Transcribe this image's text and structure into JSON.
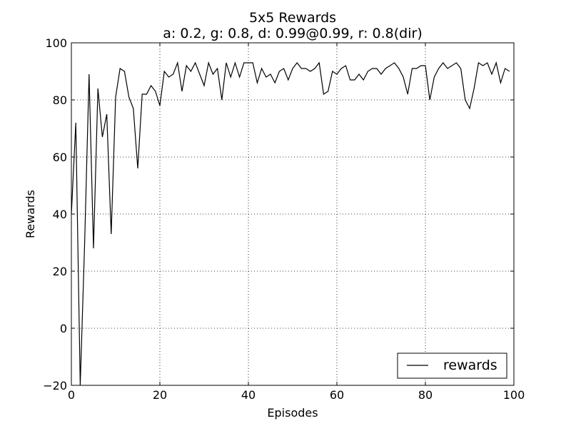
{
  "chart_data": {
    "type": "line",
    "title": "5x5 Rewards",
    "subtitle": "a: 0.2, g: 0.8, d: 0.99@0.99, r: 0.8(dir)",
    "xlabel": "Episodes",
    "ylabel": "Rewards",
    "xlim": [
      0,
      100
    ],
    "ylim": [
      -20,
      100
    ],
    "xticks": [
      "0",
      "20",
      "40",
      "60",
      "80",
      "100"
    ],
    "yticks": [
      "−20",
      "0",
      "20",
      "40",
      "60",
      "80",
      "100"
    ],
    "xtick_values": [
      0,
      20,
      40,
      60,
      80,
      100
    ],
    "ytick_values": [
      -20,
      0,
      20,
      40,
      60,
      80,
      100
    ],
    "grid": true,
    "legend_position": "lower-right",
    "series": [
      {
        "name": "rewards",
        "color": "#000000",
        "x": [
          0,
          1,
          2,
          3,
          4,
          5,
          6,
          7,
          8,
          9,
          10,
          11,
          12,
          13,
          14,
          15,
          16,
          17,
          18,
          19,
          20,
          21,
          22,
          23,
          24,
          25,
          26,
          27,
          28,
          29,
          30,
          31,
          32,
          33,
          34,
          35,
          36,
          37,
          38,
          39,
          40,
          41,
          42,
          43,
          44,
          45,
          46,
          47,
          48,
          49,
          50,
          51,
          52,
          53,
          54,
          55,
          56,
          57,
          58,
          59,
          60,
          61,
          62,
          63,
          64,
          65,
          66,
          67,
          68,
          69,
          70,
          71,
          72,
          73,
          74,
          75,
          76,
          77,
          78,
          79,
          80,
          81,
          82,
          83,
          84,
          85,
          86,
          87,
          88,
          89,
          90,
          91,
          92,
          93,
          94,
          95,
          96,
          97,
          98,
          99
        ],
        "values": [
          40,
          72,
          -20,
          30,
          89,
          28,
          84,
          67,
          75,
          33,
          81,
          91,
          90,
          81,
          77,
          56,
          82,
          82,
          85,
          83,
          78,
          90,
          88,
          89,
          93,
          83,
          92,
          90,
          93,
          89,
          85,
          93,
          89,
          91,
          80,
          93,
          88,
          93,
          88,
          93,
          93,
          93,
          86,
          91,
          88,
          89,
          86,
          90,
          91,
          87,
          91,
          93,
          91,
          91,
          90,
          91,
          93,
          82,
          83,
          90,
          89,
          91,
          92,
          87,
          87,
          89,
          87,
          90,
          91,
          91,
          89,
          91,
          92,
          93,
          91,
          88,
          82,
          91,
          91,
          92,
          92,
          80,
          88,
          91,
          93,
          91,
          92,
          93,
          91,
          80,
          77,
          84,
          93,
          92,
          93,
          89,
          93,
          86,
          91,
          90
        ]
      }
    ]
  }
}
